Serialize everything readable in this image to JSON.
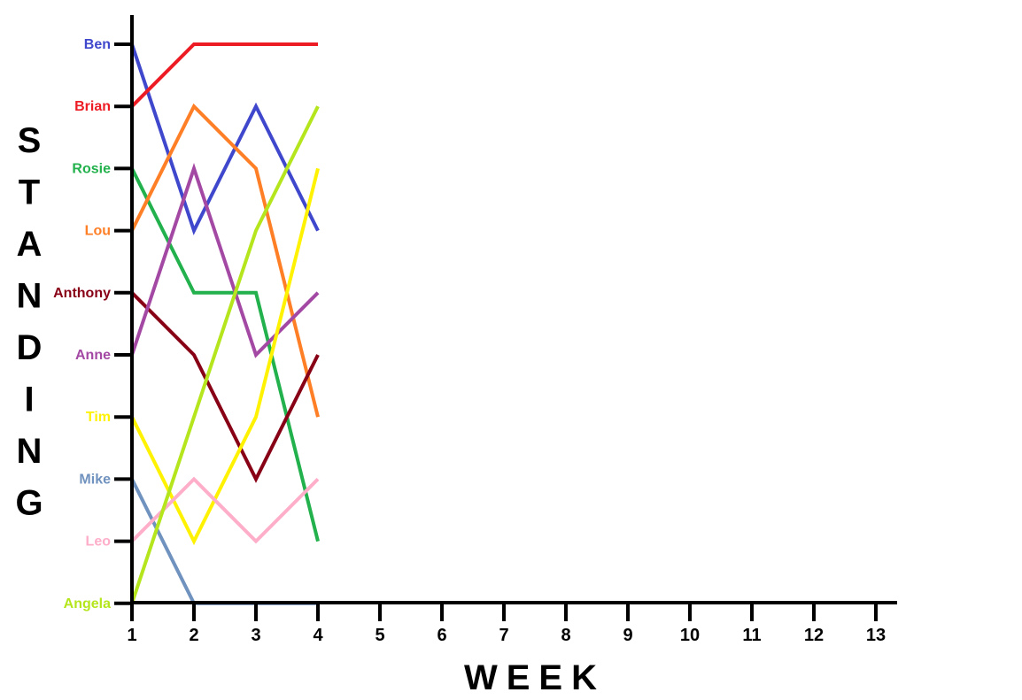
{
  "chart_data": {
    "type": "line",
    "title": "",
    "xlabel": "WEEK",
    "ylabel": "STANDING",
    "x": [
      1,
      2,
      3,
      4
    ],
    "xlim": [
      1,
      13
    ],
    "xticks": [
      "1",
      "2",
      "3",
      "4",
      "5",
      "6",
      "7",
      "8",
      "9",
      "10",
      "11",
      "12",
      "13"
    ],
    "ylim": [
      1,
      10
    ],
    "yticks": [
      "Ben",
      "Brian",
      "Rosie",
      "Lou",
      "Anthony",
      "Anne",
      "Tim",
      "Mike",
      "Leo",
      "Angela"
    ],
    "y_axis_note": "1 = top standing",
    "grid": false,
    "series": [
      {
        "name": "Ben",
        "color": "#3f48cc",
        "values": [
          1,
          4,
          2,
          4
        ]
      },
      {
        "name": "Brian",
        "color": "#ed1c24",
        "values": [
          2,
          1,
          1,
          1
        ]
      },
      {
        "name": "Rosie",
        "color": "#22b14c",
        "values": [
          3,
          5,
          5,
          9
        ]
      },
      {
        "name": "Lou",
        "color": "#ff7f27",
        "values": [
          4,
          2,
          3,
          7
        ]
      },
      {
        "name": "Anthony",
        "color": "#880015",
        "values": [
          5,
          6,
          8,
          6
        ]
      },
      {
        "name": "Anne",
        "color": "#a349a4",
        "values": [
          6,
          3,
          6,
          5
        ]
      },
      {
        "name": "Tim",
        "color": "#fff200",
        "values": [
          7,
          9,
          7,
          3
        ]
      },
      {
        "name": "Mike",
        "color": "#7092be",
        "values": [
          8,
          10,
          10,
          10
        ]
      },
      {
        "name": "Leo",
        "color": "#ffaec9",
        "values": [
          9,
          8,
          9,
          8
        ]
      },
      {
        "name": "Angela",
        "color": "#b5e61d",
        "values": [
          10,
          7,
          4,
          2
        ]
      }
    ]
  }
}
